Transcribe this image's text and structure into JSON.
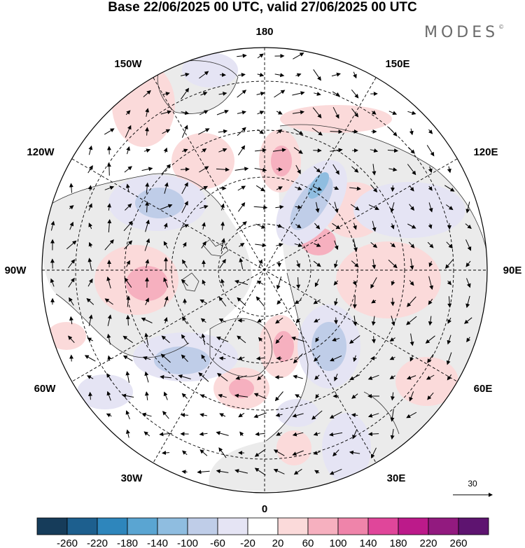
{
  "title": "Base 22/06/2025 00 UTC, valid 27/06/2025 00 UTC",
  "logo": {
    "text": "MODES",
    "mark": "©"
  },
  "map": {
    "projection": "north-polar-stereographic",
    "longitude_labels": {
      "top": "180",
      "top_left": "150W",
      "top_right": "150E",
      "upper_left": "120W",
      "upper_right": "120E",
      "left": "90W",
      "right": "90E",
      "lower_left": "60W",
      "lower_right": "60E",
      "bottom_left": "30W",
      "bottom_right": "30E",
      "bottom": "0"
    },
    "vector_reference": {
      "label": "30"
    }
  },
  "colorbar": {
    "labels": [
      "-260",
      "-220",
      "-180",
      "-140",
      "-100",
      "-60",
      "-20",
      "20",
      "60",
      "100",
      "140",
      "180",
      "220",
      "260"
    ],
    "colors": [
      "#163c5a",
      "#1d5f8e",
      "#2e86bc",
      "#5aa5d2",
      "#8fbde0",
      "#bfcde8",
      "#e5e4f4",
      "#ffffff",
      "#fbdada",
      "#f6b0bf",
      "#ef84aa",
      "#e0469a",
      "#bc1a8a",
      "#921a7f",
      "#5e1470"
    ]
  }
}
